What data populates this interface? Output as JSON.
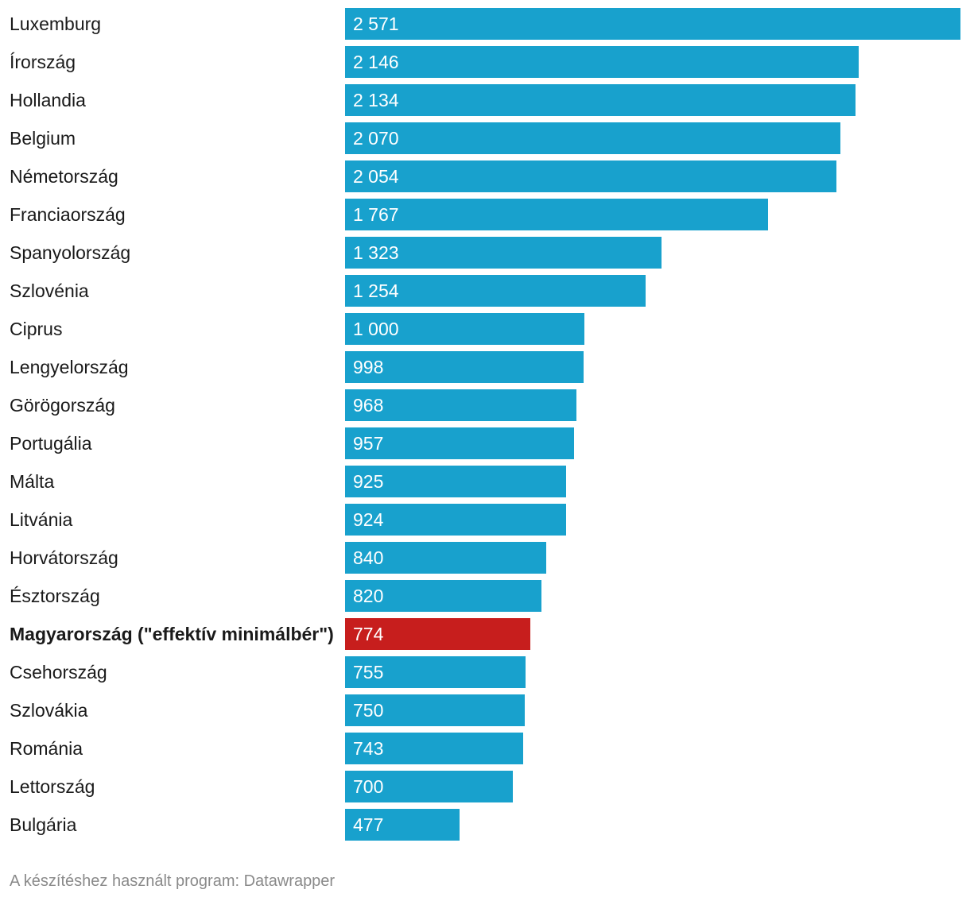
{
  "chart_data": {
    "type": "bar",
    "orientation": "horizontal",
    "title": "",
    "xlabel": "",
    "ylabel": "",
    "xlim": [
      0,
      2571
    ],
    "grid": false,
    "categories": [
      "Luxemburg",
      "Írország",
      "Hollandia",
      "Belgium",
      "Németország",
      "Franciaország",
      "Spanyolország",
      "Szlovénia",
      "Ciprus",
      "Lengyelország",
      "Görögország",
      "Portugália",
      "Málta",
      "Litvánia",
      "Horvátország",
      "Észtország",
      "Magyarország (\"effektív minimálbér\")",
      "Csehország",
      "Szlovákia",
      "Románia",
      "Lettország",
      "Bulgária"
    ],
    "values": [
      2571,
      2146,
      2134,
      2070,
      2054,
      1767,
      1323,
      1254,
      1000,
      998,
      968,
      957,
      925,
      924,
      840,
      820,
      774,
      755,
      750,
      743,
      700,
      477
    ],
    "value_labels": [
      "2 571",
      "2 146",
      "2 134",
      "2 070",
      "2 054",
      "1 767",
      "1 323",
      "1 254",
      "1 000",
      "998",
      "968",
      "957",
      "925",
      "924",
      "840",
      "820",
      "774",
      "755",
      "750",
      "743",
      "700",
      "477"
    ],
    "highlight_index": 16,
    "colors": {
      "bar": "#18a1cd",
      "highlight": "#c71e1d",
      "value_text": "#ffffff",
      "label_text": "#1a1a1a"
    }
  },
  "footer": {
    "text": "A készítéshez használt program: Datawrapper"
  }
}
